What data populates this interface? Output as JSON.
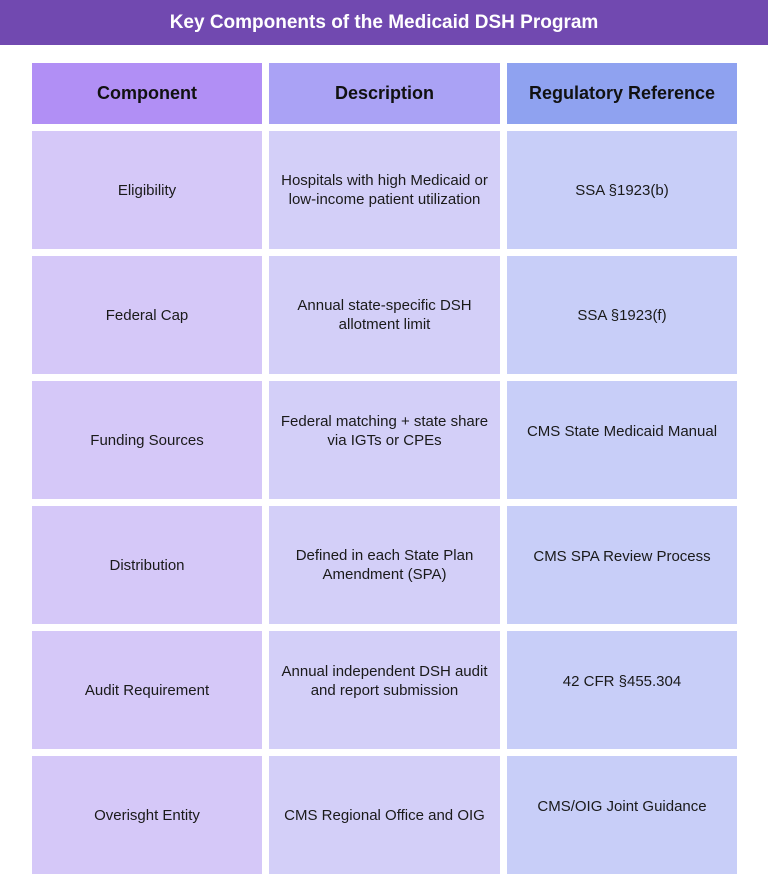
{
  "title": "Key Components of the Medicaid DSH Program",
  "table": {
    "headers": [
      "Component",
      "Description",
      "Regulatory Reference"
    ],
    "rows": [
      [
        "Eligibility",
        "Hospitals with high Medicaid or low-income patient utilization",
        "SSA §1923(b)"
      ],
      [
        "Federal Cap",
        "Annual state-specific DSH allotment limit",
        "SSA §1923(f)"
      ],
      [
        "Funding Sources",
        "Federal matching + state share via IGTs or CPEs",
        "CMS State Medicaid Manual"
      ],
      [
        "Distribution",
        "Defined in each State Plan Amendment (SPA)",
        "CMS SPA Review Process"
      ],
      [
        "Audit Requirement",
        "Annual independent DSH audit and report submission",
        "42 CFR §455.304"
      ],
      [
        "Overisght Entity",
        "CMS Regional Office and OIG",
        "CMS/OIG Joint Guidance"
      ]
    ]
  },
  "colors": {
    "title_bg": "#7149b0",
    "header": [
      "#b18ff5",
      "#aaa2f5",
      "#8fa2f0"
    ],
    "body": [
      "#d5c8f8",
      "#d3cff8",
      "#c8cef8"
    ]
  }
}
